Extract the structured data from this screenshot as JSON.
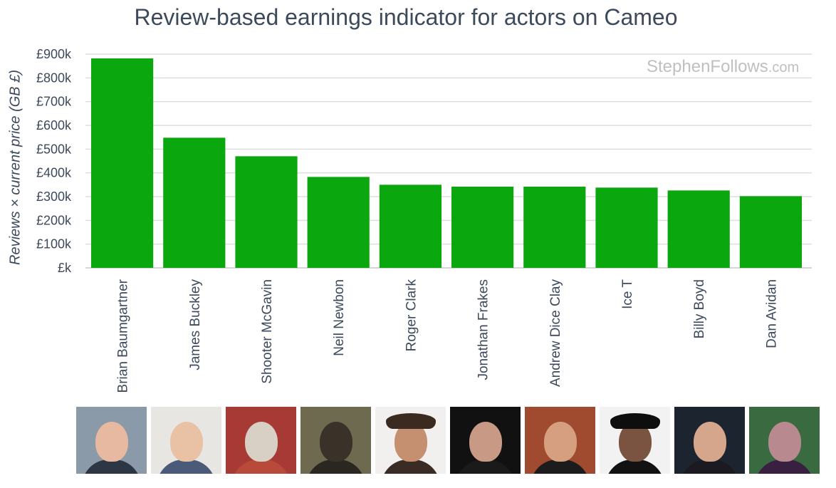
{
  "chart_data": {
    "type": "bar",
    "title": "Review-based earnings indicator for actors on Cameo",
    "ylabel": "Reviews × current price (GB £)",
    "xlabel": "",
    "ylim": [
      0,
      900000
    ],
    "yticks": [
      0,
      100000,
      200000,
      300000,
      400000,
      500000,
      600000,
      700000,
      800000,
      900000
    ],
    "ytick_labels": [
      "£k",
      "£100k",
      "£200k",
      "£300k",
      "£400k",
      "£500k",
      "£600k",
      "£700k",
      "£800k",
      "£900k"
    ],
    "categories": [
      "Brian Baumgartner",
      "James Buckley",
      "Shooter McGavin",
      "Neil Newbon",
      "Roger Clark",
      "Jonathan Frakes",
      "Andrew Dice Clay",
      "Ice T",
      "Billy Boyd",
      "Dan Avidan"
    ],
    "values": [
      882000,
      548000,
      470000,
      383000,
      350000,
      342000,
      342000,
      338000,
      326000,
      302000
    ],
    "bar_color": "#0aa80e",
    "grid": true,
    "legend": "none"
  },
  "watermark": {
    "main": "StephenFollows",
    "suffix": ".com"
  },
  "photos": [
    {
      "name": "photo-brian-baumgartner",
      "bg": "#8a9aa8",
      "skin": "#e6b9a0",
      "body": "#2c3645"
    },
    {
      "name": "photo-james-buckley",
      "bg": "#e8e6e3",
      "skin": "#e9c2a6",
      "body": "#4a5a78"
    },
    {
      "name": "photo-shooter-mcgavin",
      "bg": "#a83a36",
      "skin": "#d8d0c4",
      "body": "#b84a3a"
    },
    {
      "name": "photo-neil-newbon",
      "bg": "#6e6a50",
      "skin": "#3a3228",
      "body": "#2a2620"
    },
    {
      "name": "photo-roger-clark",
      "bg": "#f2f0ee",
      "skin": "#c49070",
      "body": "#3a2c24"
    },
    {
      "name": "photo-jonathan-frakes",
      "bg": "#111111",
      "skin": "#c89a86",
      "body": "#1a1a1a"
    },
    {
      "name": "photo-andrew-dice-clay",
      "bg": "#a04a30",
      "skin": "#d6a080",
      "body": "#1c1c1c"
    },
    {
      "name": "photo-ice-t",
      "bg": "#f2f2f2",
      "skin": "#7a5440",
      "body": "#121212"
    },
    {
      "name": "photo-billy-boyd",
      "bg": "#1c2430",
      "skin": "#d6a68c",
      "body": "#1a1a20"
    },
    {
      "name": "photo-dan-avidan",
      "bg": "#3a6a40",
      "skin": "#b88a90",
      "body": "#3a2040"
    }
  ]
}
